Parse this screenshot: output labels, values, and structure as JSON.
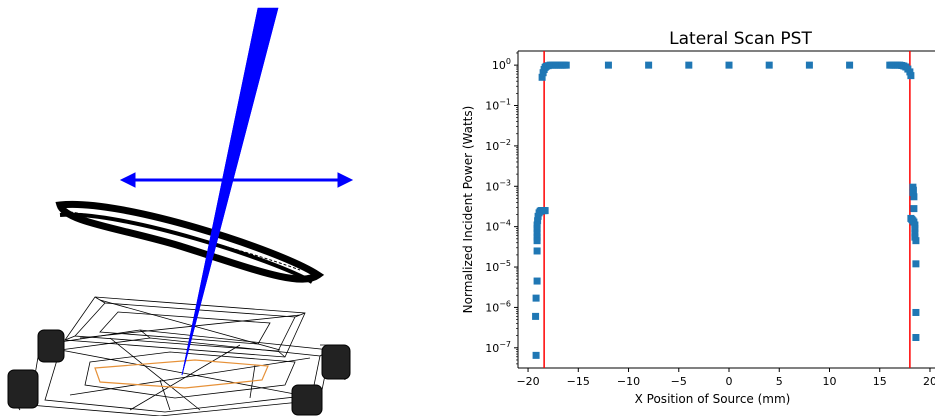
{
  "colors": {
    "beam": "#0000ff",
    "wireframe": "#000000",
    "sample_outline": "#e69138",
    "marker": "#1f77b4",
    "boundary": "#ff0000"
  },
  "chart_data": {
    "type": "scatter",
    "title": "Lateral Scan PST",
    "xlabel": "X Position of Source (mm)",
    "ylabel": "Normalized Incident Power (Watts)",
    "xlim": [
      -21,
      20.5
    ],
    "ylim_log10": [
      -7.5,
      0.35
    ],
    "yscale": "log",
    "x_ticks": [
      -20,
      -15,
      -10,
      -5,
      0,
      5,
      10,
      15,
      20
    ],
    "x_tick_labels": [
      "−20",
      "−15",
      "−10",
      "−5",
      "0",
      "5",
      "10",
      "15",
      "20"
    ],
    "y_tick_exponents": [
      0,
      -1,
      -2,
      -3,
      -4,
      -5,
      -6,
      -7
    ],
    "vertical_lines_x": [
      -18.4,
      18.0
    ],
    "grid": false,
    "series": [
      {
        "marker": "square",
        "points": [
          [
            -18.6,
            0.5
          ],
          [
            -18.5,
            0.65
          ],
          [
            -18.4,
            0.78
          ],
          [
            -18.3,
            0.88
          ],
          [
            -18.2,
            0.93
          ],
          [
            -18.0,
            0.97
          ],
          [
            -17.8,
            1.0
          ],
          [
            -17.6,
            1.0
          ],
          [
            -17.4,
            1.0
          ],
          [
            -17.2,
            1.0
          ],
          [
            -17.0,
            1.0
          ],
          [
            -16.8,
            1.0
          ],
          [
            -16.6,
            1.0
          ],
          [
            -16.4,
            1.0
          ],
          [
            -16.2,
            1.0
          ],
          [
            -12,
            1.0
          ],
          [
            -8,
            1.0
          ],
          [
            -4,
            1.0
          ],
          [
            0,
            1.0
          ],
          [
            4,
            1.0
          ],
          [
            8,
            1.0
          ],
          [
            12,
            1.0
          ],
          [
            16.0,
            1.0
          ],
          [
            16.2,
            1.0
          ],
          [
            16.4,
            1.0
          ],
          [
            16.6,
            1.0
          ],
          [
            16.8,
            1.0
          ],
          [
            17.0,
            1.0
          ],
          [
            17.2,
            0.98
          ],
          [
            17.4,
            0.95
          ],
          [
            17.6,
            0.9
          ],
          [
            17.8,
            0.8
          ],
          [
            18.0,
            0.68
          ],
          [
            18.1,
            0.55
          ],
          [
            -18.9,
            0.00022
          ],
          [
            -18.8,
            0.00024
          ],
          [
            -18.7,
            0.00025
          ],
          [
            -18.6,
            0.00025
          ],
          [
            -18.5,
            0.00025
          ],
          [
            -18.4,
            0.00025
          ],
          [
            -18.3,
            0.00025
          ],
          [
            -19.0,
            0.00018
          ],
          [
            -19.05,
            0.00014
          ],
          [
            -19.1,
            0.00011
          ],
          [
            -19.1,
            9e-05
          ],
          [
            -19.1,
            7e-05
          ],
          [
            -19.1,
            5.5e-05
          ],
          [
            -19.1,
            4.5e-05
          ],
          [
            -19.1,
            2.5e-05
          ],
          [
            -19.1,
            4.5e-06
          ],
          [
            -19.2,
            1.7e-06
          ],
          [
            -19.25,
            6e-07
          ],
          [
            -19.2,
            6.5e-08
          ],
          [
            18.3,
            0.00095
          ],
          [
            18.35,
            0.0008
          ],
          [
            18.3,
            0.0007
          ],
          [
            18.4,
            0.00055
          ],
          [
            18.4,
            0.00028
          ],
          [
            18.1,
            0.00016
          ],
          [
            18.2,
            0.00015
          ],
          [
            18.3,
            0.00014
          ],
          [
            18.4,
            0.00013
          ],
          [
            18.5,
            0.00011
          ],
          [
            18.5,
            9e-05
          ],
          [
            18.5,
            7e-05
          ],
          [
            18.5,
            5.5e-05
          ],
          [
            18.6,
            4.5e-05
          ],
          [
            18.6,
            1.2e-05
          ],
          [
            18.6,
            7.5e-07
          ],
          [
            18.6,
            1.8e-07
          ]
        ]
      }
    ]
  }
}
